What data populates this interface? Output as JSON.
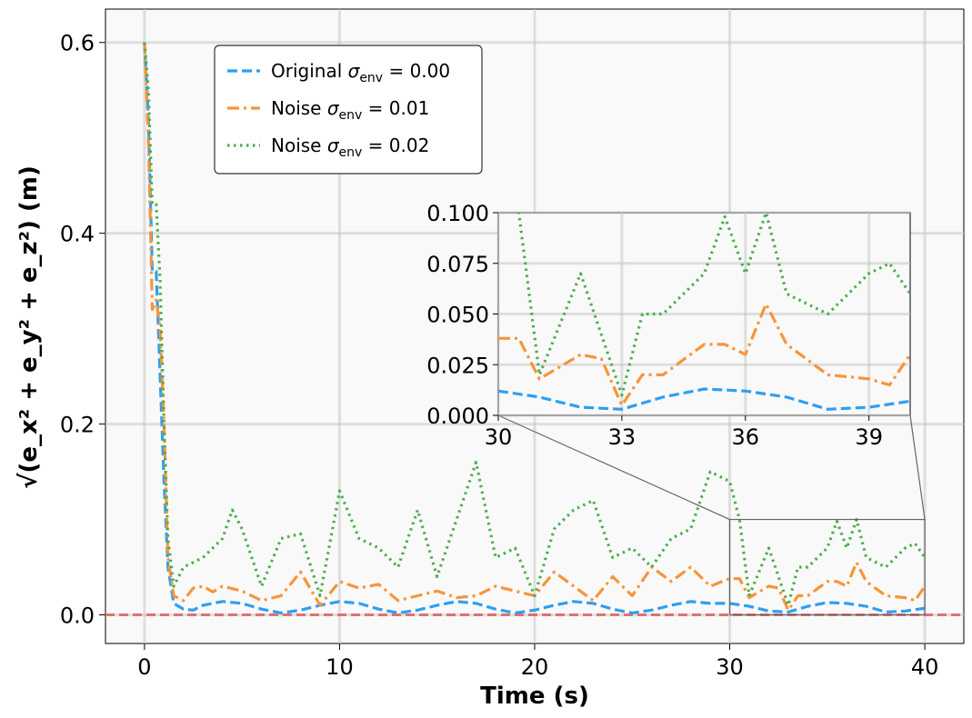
{
  "chart_data": {
    "type": "line",
    "xlabel": "Time (s)",
    "ylabel": "√(e_x² + e_y² + e_z²) (m)",
    "xlim": [
      -2,
      42
    ],
    "ylim": [
      -0.03,
      0.635
    ],
    "xticks": [
      0,
      10,
      20,
      30,
      40
    ],
    "xtick_labels": [
      "0",
      "10",
      "20",
      "30",
      "40"
    ],
    "yticks": [
      0.0,
      0.2,
      0.4,
      0.6
    ],
    "ytick_labels": [
      "0.0",
      "0.2",
      "0.4",
      "0.6"
    ],
    "grid": true,
    "legend_position": "top-left",
    "reference_line": {
      "y": 0.0,
      "color": "#e06666"
    },
    "series": [
      {
        "name": "Original σ_env = 0.00",
        "name_main": "Original",
        "sub": "env",
        "value_text": "0.00",
        "color": "#2f9fef",
        "dash": "dashed",
        "points": [
          [
            0,
            0.6
          ],
          [
            0.2,
            0.52
          ],
          [
            0.4,
            0.36
          ],
          [
            0.6,
            0.36
          ],
          [
            0.8,
            0.25
          ],
          [
            1.0,
            0.14
          ],
          [
            1.2,
            0.05
          ],
          [
            1.5,
            0.012
          ],
          [
            2,
            0.006
          ],
          [
            2.5,
            0.005
          ],
          [
            3,
            0.01
          ],
          [
            4,
            0.014
          ],
          [
            5,
            0.012
          ],
          [
            6,
            0.006
          ],
          [
            7,
            0.002
          ],
          [
            8,
            0.005
          ],
          [
            9,
            0.01
          ],
          [
            10,
            0.014
          ],
          [
            11,
            0.012
          ],
          [
            12,
            0.006
          ],
          [
            13,
            0.002
          ],
          [
            14,
            0.005
          ],
          [
            15,
            0.01
          ],
          [
            16,
            0.014
          ],
          [
            17,
            0.012
          ],
          [
            18,
            0.006
          ],
          [
            19,
            0.002
          ],
          [
            20,
            0.005
          ],
          [
            21,
            0.01
          ],
          [
            22,
            0.014
          ],
          [
            23,
            0.012
          ],
          [
            24,
            0.006
          ],
          [
            25,
            0.002
          ],
          [
            26,
            0.005
          ],
          [
            27,
            0.01
          ],
          [
            28,
            0.014
          ],
          [
            29,
            0.012
          ],
          [
            30,
            0.012
          ],
          [
            31,
            0.009
          ],
          [
            32,
            0.004
          ],
          [
            33,
            0.003
          ],
          [
            34,
            0.009
          ],
          [
            35,
            0.013
          ],
          [
            36,
            0.012
          ],
          [
            37,
            0.009
          ],
          [
            38,
            0.003
          ],
          [
            39,
            0.004
          ],
          [
            40,
            0.007
          ]
        ]
      },
      {
        "name": "Noise σ_env = 0.01",
        "name_main": "Noise",
        "sub": "env",
        "value_text": "0.01",
        "color": "#f7953a",
        "dash": "dashdot",
        "points": [
          [
            0,
            0.6
          ],
          [
            0.2,
            0.5
          ],
          [
            0.4,
            0.32
          ],
          [
            0.6,
            0.33
          ],
          [
            0.8,
            0.3
          ],
          [
            1.0,
            0.2
          ],
          [
            1.2,
            0.06
          ],
          [
            1.5,
            0.02
          ],
          [
            2,
            0.015
          ],
          [
            2.5,
            0.028
          ],
          [
            3,
            0.03
          ],
          [
            3.5,
            0.024
          ],
          [
            4,
            0.03
          ],
          [
            5,
            0.025
          ],
          [
            6,
            0.015
          ],
          [
            7,
            0.02
          ],
          [
            8,
            0.045
          ],
          [
            9,
            0.01
          ],
          [
            10,
            0.035
          ],
          [
            11,
            0.028
          ],
          [
            12,
            0.032
          ],
          [
            13,
            0.015
          ],
          [
            14,
            0.02
          ],
          [
            15,
            0.025
          ],
          [
            16,
            0.018
          ],
          [
            17,
            0.02
          ],
          [
            18,
            0.03
          ],
          [
            19,
            0.025
          ],
          [
            20,
            0.02
          ],
          [
            21,
            0.045
          ],
          [
            22,
            0.03
          ],
          [
            23,
            0.015
          ],
          [
            24,
            0.04
          ],
          [
            25,
            0.02
          ],
          [
            26,
            0.05
          ],
          [
            27,
            0.035
          ],
          [
            28,
            0.05
          ],
          [
            29,
            0.03
          ],
          [
            30,
            0.038
          ],
          [
            30.5,
            0.038
          ],
          [
            31,
            0.018
          ],
          [
            32,
            0.03
          ],
          [
            32.5,
            0.028
          ],
          [
            33,
            0.005
          ],
          [
            33.5,
            0.02
          ],
          [
            34,
            0.02
          ],
          [
            35,
            0.035
          ],
          [
            35.5,
            0.035
          ],
          [
            36,
            0.03
          ],
          [
            36.5,
            0.055
          ],
          [
            37,
            0.035
          ],
          [
            38,
            0.02
          ],
          [
            39,
            0.018
          ],
          [
            39.5,
            0.015
          ],
          [
            40,
            0.03
          ]
        ]
      },
      {
        "name": "Noise σ_env = 0.02",
        "name_main": "Noise",
        "sub": "env",
        "value_text": "0.02",
        "color": "#4cae4c",
        "dash": "dotted",
        "points": [
          [
            0,
            0.6
          ],
          [
            0.2,
            0.55
          ],
          [
            0.4,
            0.43
          ],
          [
            0.6,
            0.43
          ],
          [
            0.8,
            0.35
          ],
          [
            1.0,
            0.2
          ],
          [
            1.2,
            0.08
          ],
          [
            1.5,
            0.03
          ],
          [
            2,
            0.05
          ],
          [
            3,
            0.06
          ],
          [
            4,
            0.08
          ],
          [
            4.5,
            0.11
          ],
          [
            5,
            0.09
          ],
          [
            6,
            0.03
          ],
          [
            7,
            0.08
          ],
          [
            8,
            0.085
          ],
          [
            9,
            0.02
          ],
          [
            10,
            0.13
          ],
          [
            11,
            0.08
          ],
          [
            12,
            0.07
          ],
          [
            13,
            0.05
          ],
          [
            14,
            0.11
          ],
          [
            15,
            0.04
          ],
          [
            16,
            0.1
          ],
          [
            17,
            0.16
          ],
          [
            18,
            0.06
          ],
          [
            19,
            0.07
          ],
          [
            20,
            0.02
          ],
          [
            21,
            0.09
          ],
          [
            22,
            0.11
          ],
          [
            23,
            0.12
          ],
          [
            24,
            0.06
          ],
          [
            25,
            0.07
          ],
          [
            26,
            0.05
          ],
          [
            27,
            0.08
          ],
          [
            28,
            0.09
          ],
          [
            29,
            0.15
          ],
          [
            30,
            0.14
          ],
          [
            30.5,
            0.1
          ],
          [
            31,
            0.02
          ],
          [
            32,
            0.07
          ],
          [
            33,
            0.01
          ],
          [
            33.5,
            0.05
          ],
          [
            34,
            0.05
          ],
          [
            35,
            0.07
          ],
          [
            35.5,
            0.098
          ],
          [
            36,
            0.07
          ],
          [
            36.5,
            0.1
          ],
          [
            37,
            0.06
          ],
          [
            38,
            0.05
          ],
          [
            39,
            0.07
          ],
          [
            39.5,
            0.075
          ],
          [
            40,
            0.06
          ]
        ]
      }
    ],
    "inset": {
      "xlim": [
        30,
        40
      ],
      "ylim": [
        0.0,
        0.1
      ],
      "xticks": [
        30,
        33,
        36,
        39
      ],
      "xtick_labels": [
        "30",
        "33",
        "36",
        "39"
      ],
      "yticks": [
        0.0,
        0.025,
        0.05,
        0.075,
        0.1
      ],
      "ytick_labels": [
        "0.000",
        "0.025",
        "0.050",
        "0.075",
        "0.100"
      ]
    }
  }
}
